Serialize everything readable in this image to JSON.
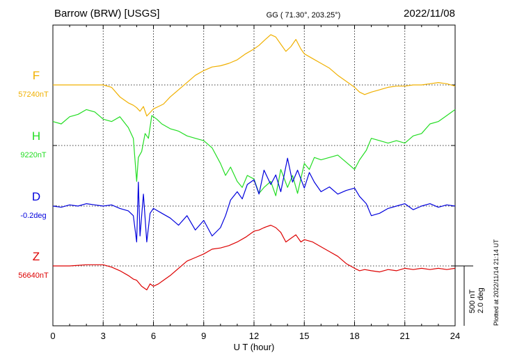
{
  "header": {
    "station": "Barrow (BRW)  [USGS]",
    "coords": "GG ( 71.30°, 203.25°)",
    "date": "2022/11/08"
  },
  "side_note": "Plotted at 2022/11/14 21:14 UT",
  "scale_bar": {
    "line1": "500 nT",
    "line2": "2.0 deg"
  },
  "chart_data": {
    "type": "line",
    "xlabel": "U T (hour)",
    "xlim": [
      0,
      24
    ],
    "xticks": [
      "0",
      "3",
      "6",
      "9",
      "12",
      "15",
      "18",
      "21",
      "24"
    ],
    "grid": true,
    "series": [
      {
        "name": "F",
        "baseline_label": "57240nT",
        "color": "#f0b000",
        "x": [
          0,
          1,
          2,
          3,
          3.5,
          4,
          4.5,
          4.8,
          5,
          5.2,
          5.4,
          5.6,
          5.8,
          6,
          6.3,
          6.6,
          7,
          7.5,
          8,
          8.5,
          9,
          9.5,
          10,
          10.5,
          11,
          11.5,
          12,
          12.3,
          12.6,
          13,
          13.3,
          13.6,
          13.9,
          14.2,
          14.5,
          14.8,
          15,
          15.5,
          16,
          16.5,
          17,
          17.5,
          18,
          18.3,
          18.6,
          19,
          19.5,
          20,
          20.5,
          21,
          21.5,
          22,
          22.5,
          23,
          23.5,
          24
        ],
        "v": [
          0,
          0,
          0,
          0,
          -20,
          -100,
          -150,
          -170,
          -190,
          -220,
          -180,
          -260,
          -230,
          -200,
          -180,
          -160,
          -100,
          -40,
          20,
          80,
          120,
          150,
          160,
          180,
          210,
          260,
          300,
          330,
          370,
          420,
          400,
          340,
          280,
          320,
          380,
          300,
          260,
          220,
          180,
          140,
          80,
          30,
          -20,
          -60,
          -80,
          -60,
          -40,
          -20,
          -10,
          -10,
          0,
          0,
          10,
          20,
          10,
          -10
        ]
      },
      {
        "name": "H",
        "baseline_label": "9220nT",
        "color": "#22dd22",
        "x": [
          0,
          0.5,
          1,
          1.5,
          2,
          2.5,
          3,
          3.5,
          4,
          4.5,
          4.8,
          5,
          5.1,
          5.3,
          5.5,
          5.7,
          5.9,
          6.2,
          6.5,
          7,
          7.5,
          8,
          8.5,
          9,
          9.5,
          10,
          10.3,
          10.6,
          11,
          11.3,
          11.6,
          12,
          12.3,
          12.6,
          13,
          13.3,
          13.6,
          14,
          14.3,
          14.6,
          15,
          15.3,
          15.6,
          16,
          16.5,
          17,
          17.5,
          18,
          18.3,
          18.7,
          19,
          19.5,
          20,
          20.5,
          21,
          21.5,
          22,
          22.5,
          23,
          23.5,
          24
        ],
        "v": [
          200,
          180,
          240,
          260,
          300,
          280,
          220,
          200,
          240,
          150,
          60,
          -300,
          -100,
          -50,
          100,
          60,
          250,
          220,
          180,
          140,
          120,
          80,
          60,
          40,
          -20,
          -150,
          -250,
          -180,
          -300,
          -350,
          -250,
          -280,
          -400,
          -350,
          -300,
          -420,
          -200,
          -350,
          -250,
          -400,
          -150,
          -200,
          -100,
          -120,
          -100,
          -80,
          -140,
          -200,
          -120,
          -40,
          60,
          40,
          20,
          40,
          20,
          80,
          100,
          180,
          200,
          250,
          300
        ]
      },
      {
        "name": "D",
        "baseline_label": "-0.2deg",
        "color": "#0000dd",
        "x": [
          0,
          0.5,
          1,
          1.5,
          2,
          2.5,
          3,
          3.5,
          4,
          4.5,
          4.8,
          5,
          5.1,
          5.2,
          5.4,
          5.6,
          5.8,
          6,
          6.5,
          7,
          7.5,
          8,
          8.5,
          9,
          9.5,
          10,
          10.3,
          10.6,
          11,
          11.3,
          11.6,
          12,
          12.3,
          12.6,
          13,
          13.3,
          13.6,
          14,
          14.3,
          14.6,
          15,
          15.3,
          15.6,
          16,
          16.5,
          17,
          17.5,
          18,
          18.3,
          18.7,
          19,
          19.5,
          20,
          20.5,
          21,
          21.5,
          22,
          22.5,
          23,
          23.5,
          24
        ],
        "v": [
          0,
          -10,
          10,
          0,
          20,
          10,
          0,
          10,
          -20,
          -40,
          -80,
          -300,
          200,
          -250,
          100,
          -300,
          -60,
          -20,
          -60,
          -100,
          -160,
          -80,
          -200,
          -120,
          -250,
          -180,
          -80,
          50,
          120,
          60,
          180,
          220,
          100,
          300,
          180,
          260,
          120,
          400,
          200,
          300,
          150,
          280,
          200,
          120,
          160,
          100,
          130,
          150,
          80,
          20,
          -80,
          -60,
          -20,
          0,
          20,
          -30,
          0,
          20,
          -10,
          10,
          0
        ]
      },
      {
        "name": "Z",
        "baseline_label": "56640nT",
        "color": "#dd0000",
        "x": [
          0,
          1,
          2,
          3,
          3.5,
          4,
          4.5,
          4.8,
          5,
          5.3,
          5.6,
          5.8,
          6,
          6.3,
          6.6,
          7,
          7.5,
          8,
          8.5,
          9,
          9.5,
          10,
          10.5,
          11,
          11.5,
          12,
          12.3,
          12.6,
          13,
          13.3,
          13.6,
          13.9,
          14.2,
          14.5,
          14.8,
          15,
          15.5,
          16,
          16.5,
          17,
          17.5,
          18,
          18.3,
          18.6,
          19,
          19.5,
          20,
          20.5,
          21,
          21.5,
          22,
          22.5,
          23,
          23.5,
          24
        ],
        "v": [
          0,
          0,
          10,
          10,
          -10,
          -40,
          -80,
          -110,
          -120,
          -170,
          -200,
          -150,
          -170,
          -150,
          -120,
          -80,
          -20,
          40,
          70,
          100,
          140,
          150,
          170,
          200,
          240,
          290,
          300,
          320,
          340,
          320,
          280,
          200,
          230,
          260,
          200,
          220,
          200,
          160,
          120,
          80,
          20,
          -20,
          -40,
          -30,
          -40,
          -50,
          -30,
          -40,
          -20,
          -30,
          -20,
          -30,
          -20,
          -30,
          -20
        ]
      }
    ]
  }
}
